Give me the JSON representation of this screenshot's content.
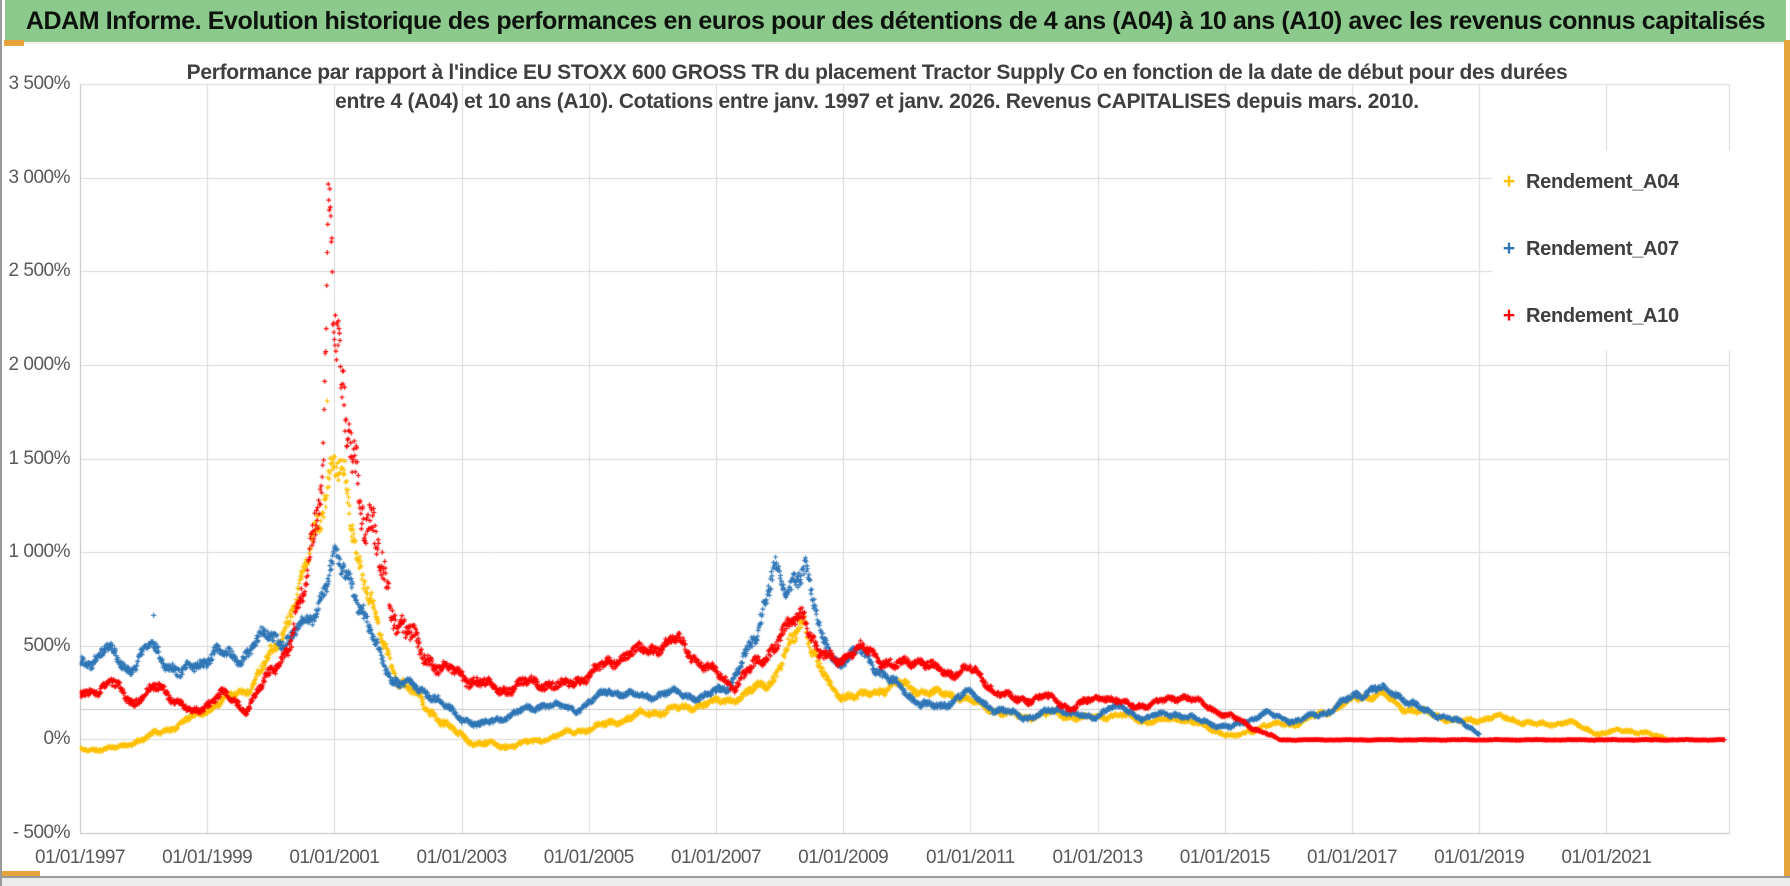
{
  "header": {
    "title": "ADAM Informe. Evolution historique des performances en euros pour des détentions de 4 ans (A04) à 10 ans (A10) avec les revenus connus capitalisés",
    "bg_color": "#8cc98c",
    "accent_color": "#e6a33c"
  },
  "chart_data": {
    "type": "scatter",
    "title_line1": "Performance par rapport à l'indice EU STOXX 600 GROSS TR  du placement Tractor Supply Co en fonction de la date de début pour des durées",
    "title_line2": "entre 4 (A04) et 10 ans (A10). Cotations entre janv. 1997 et janv. 2026. Revenus CAPITALISES depuis mars. 2010.",
    "grid": true,
    "legend_position": "top-right",
    "y_axis": {
      "min": -500,
      "max": 3500,
      "step": 500,
      "unit": "%",
      "tick_labels": [
        "3 500%",
        "3 000%",
        "2 500%",
        "2 000%",
        "1 500%",
        "1 000%",
        "500%",
        "0%",
        "- 500%"
      ]
    },
    "x_axis": {
      "start_year": 1997,
      "end_year": 2022.9,
      "tick_step_years": 2,
      "tick_labels": [
        "01/01/1997",
        "01/01/1999",
        "01/01/2001",
        "01/01/2003",
        "01/01/2005",
        "01/01/2007",
        "01/01/2009",
        "01/01/2011",
        "01/01/2013",
        "01/01/2015",
        "01/01/2017",
        "01/01/2019",
        "01/01/2021"
      ]
    },
    "extra_hline_value": 160,
    "series": [
      {
        "name": "Rendement_A04",
        "color": "#FFC000",
        "seed": 11,
        "keypoints": [
          [
            1997.0,
            -55,
            12
          ],
          [
            1997.6,
            -42,
            12
          ],
          [
            1998.1,
            20,
            18
          ],
          [
            1998.6,
            90,
            20
          ],
          [
            1999.2,
            200,
            25
          ],
          [
            1999.7,
            290,
            30
          ],
          [
            2000.1,
            520,
            50
          ],
          [
            2000.45,
            800,
            60
          ],
          [
            2000.7,
            1150,
            90
          ],
          [
            2000.95,
            1450,
            110
          ],
          [
            2001.15,
            1380,
            110
          ],
          [
            2001.4,
            950,
            90
          ],
          [
            2001.7,
            560,
            60
          ],
          [
            2002.0,
            330,
            45
          ],
          [
            2002.4,
            190,
            35
          ],
          [
            2002.8,
            60,
            25
          ],
          [
            2003.2,
            -15,
            20
          ],
          [
            2003.7,
            -35,
            15
          ],
          [
            2004.2,
            -5,
            15
          ],
          [
            2004.7,
            40,
            18
          ],
          [
            2005.2,
            75,
            20
          ],
          [
            2005.8,
            135,
            22
          ],
          [
            2006.3,
            160,
            22
          ],
          [
            2006.9,
            195,
            22
          ],
          [
            2007.4,
            230,
            25
          ],
          [
            2007.9,
            330,
            35
          ],
          [
            2008.2,
            520,
            55
          ],
          [
            2008.37,
            660,
            60
          ],
          [
            2008.6,
            390,
            45
          ],
          [
            2008.85,
            250,
            30
          ],
          [
            2009.3,
            230,
            28
          ],
          [
            2009.8,
            300,
            30
          ],
          [
            2010.3,
            255,
            25
          ],
          [
            2010.8,
            235,
            25
          ],
          [
            2011.3,
            165,
            22
          ],
          [
            2011.8,
            120,
            20
          ],
          [
            2012.3,
            140,
            20
          ],
          [
            2012.8,
            115,
            18
          ],
          [
            2013.3,
            135,
            18
          ],
          [
            2013.8,
            95,
            16
          ],
          [
            2014.3,
            115,
            16
          ],
          [
            2014.8,
            55,
            14
          ],
          [
            2015.15,
            15,
            12
          ],
          [
            2015.6,
            75,
            14
          ],
          [
            2016.1,
            85,
            14
          ],
          [
            2016.6,
            150,
            18
          ],
          [
            2017.1,
            225,
            22
          ],
          [
            2017.45,
            245,
            22
          ],
          [
            2017.8,
            170,
            20
          ],
          [
            2018.2,
            140,
            18
          ],
          [
            2018.7,
            95,
            16
          ],
          [
            2019.3,
            125,
            16
          ],
          [
            2019.9,
            80,
            14
          ],
          [
            2020.4,
            95,
            14
          ],
          [
            2020.9,
            30,
            12
          ],
          [
            2021.3,
            55,
            12
          ],
          [
            2021.7,
            25,
            10
          ],
          [
            2021.95,
            10,
            8
          ]
        ],
        "outliers": [
          [
            2000.88,
            1810
          ]
        ]
      },
      {
        "name": "Rendement_A07",
        "color": "#2E75B6",
        "seed": 22,
        "keypoints": [
          [
            1997.0,
            400,
            45
          ],
          [
            1997.4,
            490,
            45
          ],
          [
            1997.75,
            375,
            40
          ],
          [
            1998.1,
            500,
            45
          ],
          [
            1998.6,
            345,
            40
          ],
          [
            1999.1,
            470,
            45
          ],
          [
            1999.5,
            430,
            40
          ],
          [
            1999.9,
            560,
            45
          ],
          [
            2000.3,
            530,
            45
          ],
          [
            2000.7,
            700,
            55
          ],
          [
            2001.0,
            950,
            70
          ],
          [
            2001.25,
            870,
            70
          ],
          [
            2001.6,
            520,
            55
          ],
          [
            2001.9,
            330,
            40
          ],
          [
            2002.2,
            280,
            35
          ],
          [
            2002.5,
            250,
            30
          ],
          [
            2002.9,
            130,
            25
          ],
          [
            2003.3,
            75,
            20
          ],
          [
            2003.8,
            140,
            22
          ],
          [
            2004.3,
            190,
            22
          ],
          [
            2004.8,
            160,
            20
          ],
          [
            2005.3,
            265,
            25
          ],
          [
            2005.8,
            230,
            22
          ],
          [
            2006.3,
            250,
            25
          ],
          [
            2006.8,
            225,
            22
          ],
          [
            2007.2,
            295,
            30
          ],
          [
            2007.6,
            520,
            60
          ],
          [
            2007.9,
            960,
            75
          ],
          [
            2008.1,
            740,
            65
          ],
          [
            2008.4,
            980,
            70
          ],
          [
            2008.65,
            520,
            50
          ],
          [
            2008.9,
            420,
            40
          ],
          [
            2009.25,
            470,
            40
          ],
          [
            2009.7,
            330,
            32
          ],
          [
            2010.1,
            215,
            26
          ],
          [
            2010.5,
            165,
            24
          ],
          [
            2010.9,
            255,
            26
          ],
          [
            2011.4,
            160,
            22
          ],
          [
            2011.9,
            120,
            20
          ],
          [
            2012.4,
            165,
            20
          ],
          [
            2012.9,
            110,
            18
          ],
          [
            2013.2,
            185,
            20
          ],
          [
            2013.7,
            120,
            18
          ],
          [
            2014.2,
            140,
            18
          ],
          [
            2014.7,
            95,
            16
          ],
          [
            2015.1,
            65,
            14
          ],
          [
            2015.6,
            140,
            18
          ],
          [
            2016.1,
            100,
            16
          ],
          [
            2016.6,
            150,
            18
          ],
          [
            2017.0,
            230,
            24
          ],
          [
            2017.35,
            275,
            26
          ],
          [
            2017.7,
            245,
            24
          ],
          [
            2018.1,
            155,
            20
          ],
          [
            2018.5,
            120,
            16
          ],
          [
            2018.8,
            75,
            14
          ],
          [
            2019.0,
            35,
            10
          ]
        ],
        "outliers": [
          [
            1998.15,
            665
          ]
        ]
      },
      {
        "name": "Rendement_A10",
        "color": "#FE0000",
        "seed": 33,
        "keypoints": [
          [
            1997.0,
            240,
            35
          ],
          [
            1997.5,
            300,
            35
          ],
          [
            1997.85,
            200,
            30
          ],
          [
            1998.25,
            290,
            32
          ],
          [
            1998.75,
            135,
            28
          ],
          [
            1999.2,
            245,
            30
          ],
          [
            1999.6,
            165,
            28
          ],
          [
            1999.95,
            330,
            40
          ],
          [
            2000.3,
            520,
            60
          ],
          [
            2000.55,
            820,
            90
          ],
          [
            2000.75,
            1350,
            150
          ],
          [
            2000.82,
            1600,
            200
          ],
          [
            2000.9,
            2900,
            300
          ],
          [
            2001.0,
            2100,
            350
          ],
          [
            2001.1,
            1750,
            250
          ],
          [
            2001.3,
            1600,
            220
          ],
          [
            2001.5,
            1150,
            180
          ],
          [
            2001.75,
            900,
            130
          ],
          [
            2002.0,
            640,
            90
          ],
          [
            2002.35,
            470,
            60
          ],
          [
            2002.7,
            380,
            45
          ],
          [
            2003.1,
            330,
            40
          ],
          [
            2003.6,
            265,
            35
          ],
          [
            2004.1,
            310,
            35
          ],
          [
            2004.6,
            285,
            32
          ],
          [
            2005.0,
            350,
            35
          ],
          [
            2005.5,
            445,
            40
          ],
          [
            2006.0,
            490,
            40
          ],
          [
            2006.4,
            530,
            40
          ],
          [
            2006.8,
            395,
            35
          ],
          [
            2007.3,
            290,
            32
          ],
          [
            2007.7,
            430,
            45
          ],
          [
            2008.05,
            560,
            50
          ],
          [
            2008.37,
            700,
            55
          ],
          [
            2008.6,
            450,
            40
          ],
          [
            2008.9,
            430,
            38
          ],
          [
            2009.3,
            490,
            38
          ],
          [
            2009.8,
            390,
            34
          ],
          [
            2010.2,
            430,
            34
          ],
          [
            2010.6,
            345,
            30
          ],
          [
            2010.95,
            390,
            30
          ],
          [
            2011.35,
            270,
            26
          ],
          [
            2011.75,
            205,
            24
          ],
          [
            2012.15,
            235,
            24
          ],
          [
            2012.55,
            170,
            22
          ],
          [
            2013.1,
            235,
            22
          ],
          [
            2013.5,
            180,
            20
          ],
          [
            2013.9,
            195,
            20
          ],
          [
            2014.35,
            235,
            20
          ],
          [
            2014.8,
            165,
            18
          ],
          [
            2015.15,
            115,
            16
          ],
          [
            2015.5,
            55,
            12
          ],
          [
            2015.78,
            12,
            6
          ],
          [
            2015.85,
            0,
            2
          ],
          [
            2022.85,
            0,
            2
          ]
        ],
        "outliers": []
      }
    ],
    "legend": [
      {
        "label": "Rendement_A04",
        "marker": "+",
        "color": "#FFC000"
      },
      {
        "label": "Rendement_A07",
        "marker": "+",
        "color": "#2E75B6"
      },
      {
        "label": "Rendement_A10",
        "marker": "+",
        "color": "#FE0000"
      }
    ]
  }
}
